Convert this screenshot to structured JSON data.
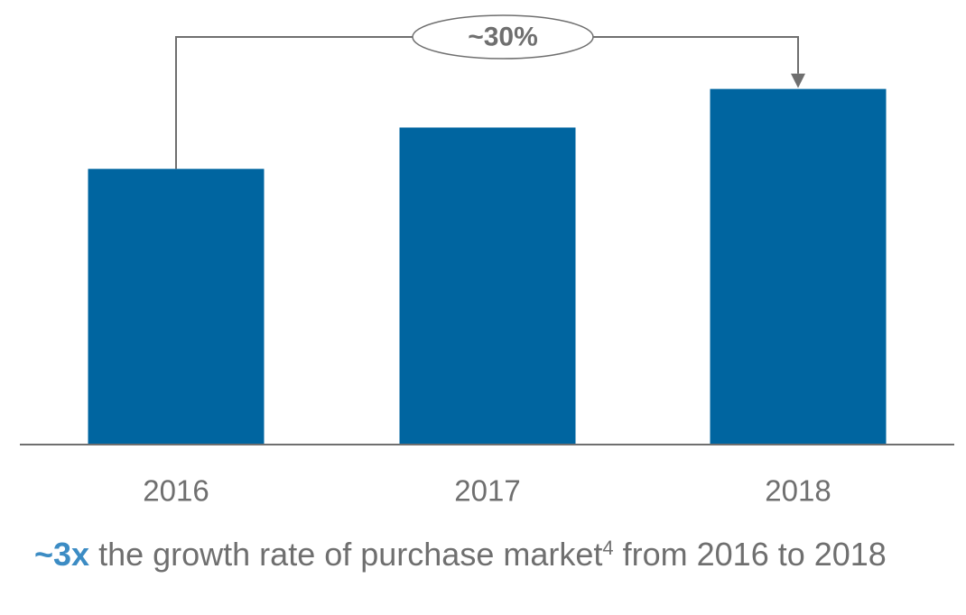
{
  "chart_data": {
    "type": "bar",
    "categories": [
      "2016",
      "2017",
      "2018"
    ],
    "values": [
      100,
      115,
      129
    ],
    "ylim": [
      0,
      140
    ],
    "grid": false,
    "bar_color": "#0065a0",
    "axis_color": "#6f6f6f",
    "annotation": {
      "label": "~30%",
      "from_category": "2016",
      "to_category": "2018"
    }
  },
  "caption": {
    "highlight": "~3x",
    "text_before_superscript": " the growth rate of purchase market",
    "superscript": "4",
    "text_after_superscript": " from 2016 to 2018"
  }
}
